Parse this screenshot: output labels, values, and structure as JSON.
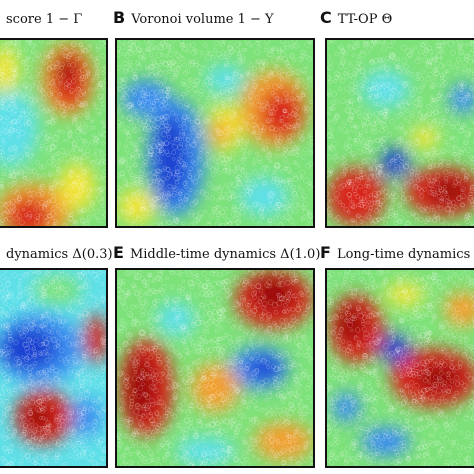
{
  "figure": {
    "panels": [
      {
        "letter": "",
        "title": "score 1 − Γ"
      },
      {
        "letter": "B",
        "title": "Voronoi volume 1 − Υ"
      },
      {
        "letter": "C",
        "title": "TT-OP Θ"
      },
      {
        "letter": "",
        "title": "dynamics Δ(0.3)"
      },
      {
        "letter": "E",
        "title": "Middle-time dynamics Δ(1.0)"
      },
      {
        "letter": "F",
        "title": "Long-time dynamics Δ"
      }
    ],
    "colormap": [
      "#1f3fd0",
      "#3a8cf0",
      "#5fe0e8",
      "#7ee27a",
      "#f2e53a",
      "#f2a030",
      "#d8281e",
      "#9a0e0e"
    ]
  }
}
